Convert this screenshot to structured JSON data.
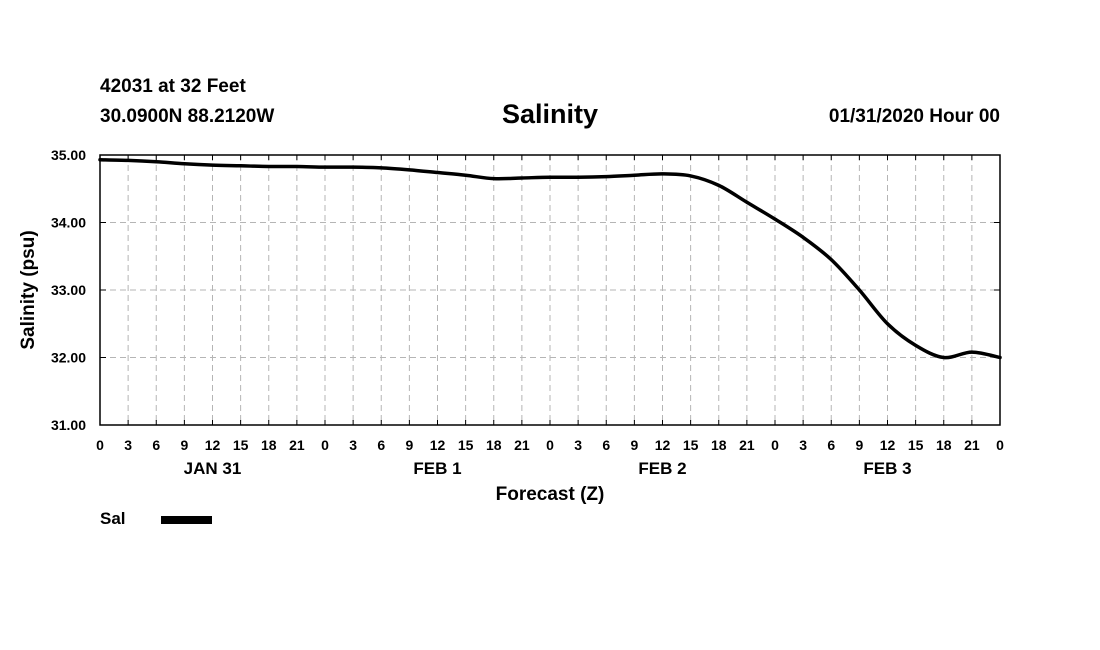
{
  "header": {
    "station": "42031 at 32 Feet",
    "coords": "30.0900N 88.2120W",
    "title": "Salinity",
    "run_time": "01/31/2020 Hour 00"
  },
  "chart_data": {
    "type": "line",
    "title": "Salinity",
    "xlabel": "Forecast (Z)",
    "ylabel": "Salinity (psu)",
    "ylim": [
      31.0,
      35.0
    ],
    "y_ticks": [
      "31.00",
      "32.00",
      "33.00",
      "34.00",
      "35.00"
    ],
    "x_range_hours": [
      0,
      96
    ],
    "x_tick_labels": [
      "0",
      "3",
      "6",
      "9",
      "12",
      "15",
      "18",
      "21",
      "0",
      "3",
      "6",
      "9",
      "12",
      "15",
      "18",
      "21",
      "0",
      "3",
      "6",
      "9",
      "12",
      "15",
      "18",
      "21",
      "0",
      "3",
      "6",
      "9",
      "12",
      "15",
      "18",
      "21",
      "0"
    ],
    "day_labels": [
      {
        "label": "JAN 31",
        "hour": 12
      },
      {
        "label": "FEB 1",
        "hour": 36
      },
      {
        "label": "FEB 2",
        "hour": 60
      },
      {
        "label": "FEB 3",
        "hour": 84
      }
    ],
    "grid": true,
    "series": [
      {
        "name": "Sal",
        "color": "#000000",
        "x": [
          0,
          3,
          6,
          9,
          12,
          15,
          18,
          21,
          24,
          27,
          30,
          33,
          36,
          39,
          42,
          45,
          48,
          51,
          54,
          57,
          60,
          63,
          66,
          69,
          72,
          75,
          78,
          81,
          84,
          87,
          90,
          93,
          96
        ],
        "values": [
          34.93,
          34.92,
          34.9,
          34.87,
          34.85,
          34.84,
          34.83,
          34.83,
          34.82,
          34.82,
          34.81,
          34.78,
          34.74,
          34.7,
          34.65,
          34.66,
          34.67,
          34.67,
          34.68,
          34.7,
          34.72,
          34.69,
          34.55,
          34.3,
          34.05,
          33.78,
          33.45,
          33.0,
          32.5,
          32.18,
          32.0,
          32.08,
          32.0
        ]
      }
    ],
    "legend": {
      "label": "Sal",
      "position": "bottom-left"
    }
  }
}
